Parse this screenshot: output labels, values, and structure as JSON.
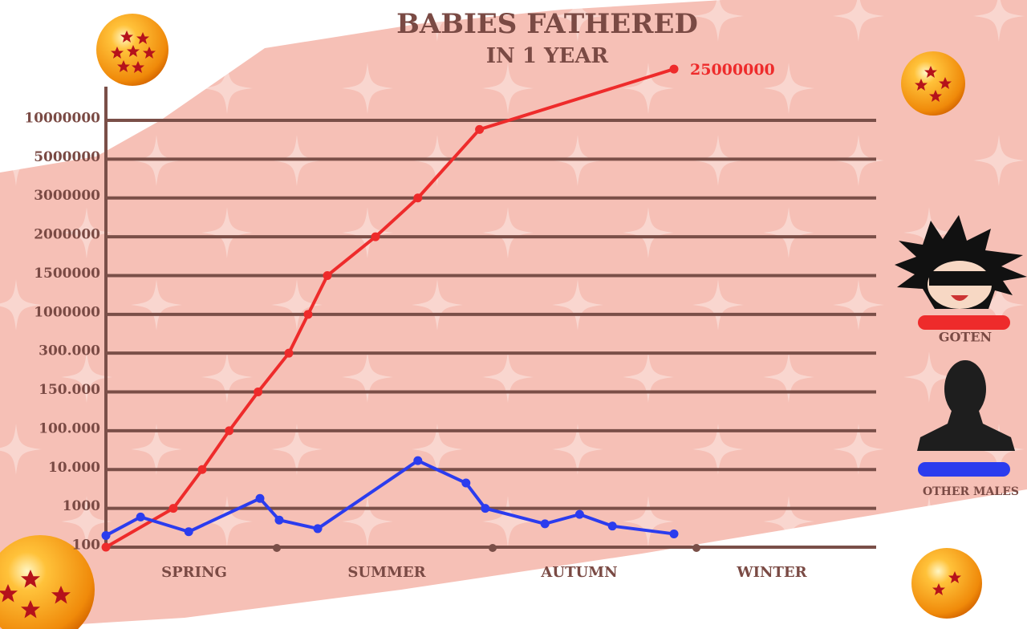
{
  "chart_data": {
    "type": "line",
    "title": "BABIES FATHERED",
    "subtitle": "IN 1 YEAR",
    "categories": [
      "SPRING",
      "SUMMER",
      "AUTUMN",
      "WINTER"
    ],
    "xlim": [
      0,
      4
    ],
    "yticks": [
      100,
      1000,
      {
        "value": 10000,
        "label": "10.000"
      },
      {
        "value": 100000,
        "label": "100.000"
      },
      {
        "value": 150000,
        "label": "150.000"
      },
      {
        "value": 300000,
        "label": "300.000"
      },
      1000000,
      1500000,
      2000000,
      3000000,
      5000000,
      10000000
    ],
    "grid": true,
    "legend": "right",
    "series": [
      {
        "name": "GOTEN",
        "color": "#ee2b2b",
        "x": [
          0,
          0.35,
          0.5,
          0.64,
          0.79,
          0.95,
          1.05,
          1.15,
          1.4,
          1.62,
          1.94,
          2.95
        ],
        "values": [
          100,
          1000,
          10000,
          100000,
          150000,
          300000,
          1000000,
          1500000,
          2000000,
          3000000,
          8500000,
          25000000
        ]
      },
      {
        "name": "OTHER MALES",
        "color": "#2b3cee",
        "x": [
          0,
          0.18,
          0.43,
          0.8,
          0.9,
          1.1,
          1.62,
          1.87,
          1.97,
          2.28,
          2.46,
          2.63,
          2.95
        ],
        "values": [
          200,
          600,
          250,
          1800,
          500,
          300,
          17000,
          4500,
          1000,
          400,
          700,
          350,
          220
        ]
      }
    ]
  }
}
